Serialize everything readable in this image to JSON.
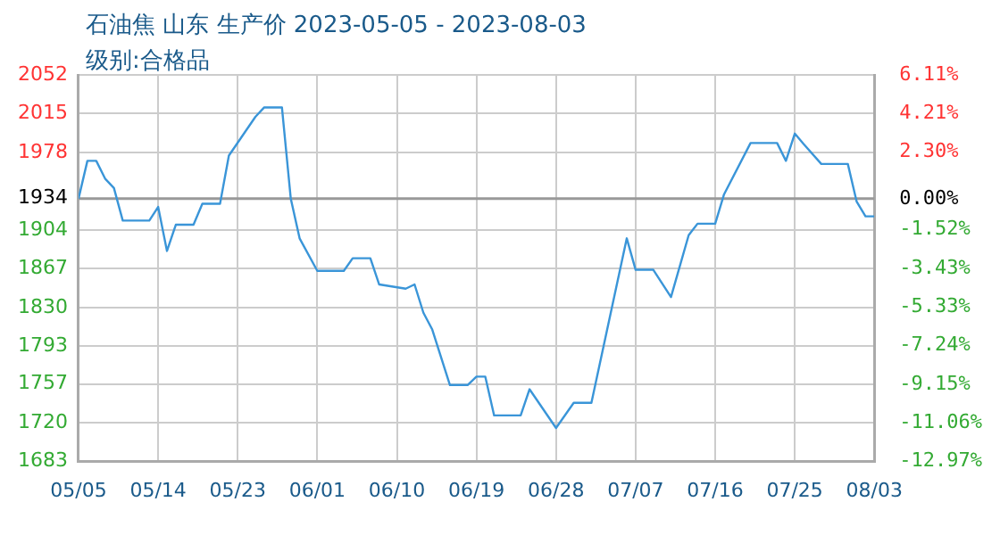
{
  "chart_data": {
    "type": "line",
    "title": "石油焦 山东 生产价 2023-05-05 - 2023-08-03",
    "subtitle": "级别:合格品",
    "x": [
      "2023-05-05",
      "2023-05-06",
      "2023-05-07",
      "2023-05-08",
      "2023-05-09",
      "2023-05-10",
      "2023-05-13",
      "2023-05-14",
      "2023-05-15",
      "2023-05-16",
      "2023-05-18",
      "2023-05-19",
      "2023-05-21",
      "2023-05-22",
      "2023-05-25",
      "2023-05-26",
      "2023-05-28",
      "2023-05-29",
      "2023-05-30",
      "2023-06-01",
      "2023-06-04",
      "2023-06-05",
      "2023-06-07",
      "2023-06-08",
      "2023-06-11",
      "2023-06-12",
      "2023-06-13",
      "2023-06-14",
      "2023-06-16",
      "2023-06-18",
      "2023-06-19",
      "2023-06-20",
      "2023-06-21",
      "2023-06-23",
      "2023-06-24",
      "2023-06-25",
      "2023-06-28",
      "2023-06-30",
      "2023-07-02",
      "2023-07-06",
      "2023-07-07",
      "2023-07-09",
      "2023-07-11",
      "2023-07-13",
      "2023-07-14",
      "2023-07-16",
      "2023-07-17",
      "2023-07-20",
      "2023-07-23",
      "2023-07-24",
      "2023-07-25",
      "2023-07-26",
      "2023-07-28",
      "2023-07-31",
      "2023-08-01",
      "2023-08-02",
      "2023-08-03"
    ],
    "series": [
      {
        "color": "#3a95d8",
        "values": [
          1934,
          1970,
          1970,
          1953,
          1944,
          1913,
          1913,
          1926,
          1884,
          1909,
          1909,
          1929,
          1929,
          1975,
          2012,
          2021,
          2021,
          1934,
          1896,
          1865,
          1865,
          1877,
          1877,
          1852,
          1848,
          1852,
          1825,
          1809,
          1756,
          1756,
          1764,
          1764,
          1727,
          1727,
          1727,
          1752,
          1715,
          1739,
          1739,
          1896,
          1866,
          1866,
          1840,
          1899,
          1910,
          1910,
          1938,
          1987,
          1987,
          1970,
          1996,
          1986,
          1967,
          1967,
          1931,
          1917,
          1917
        ]
      }
    ],
    "xlim": [
      "2023-05-05",
      "2023-08-03"
    ],
    "xticks": [
      {
        "value": "2023-05-05",
        "label": "05/05"
      },
      {
        "value": "2023-05-14",
        "label": "05/14"
      },
      {
        "value": "2023-05-23",
        "label": "05/23"
      },
      {
        "value": "2023-06-01",
        "label": "06/01"
      },
      {
        "value": "2023-06-10",
        "label": "06/10"
      },
      {
        "value": "2023-06-19",
        "label": "06/19"
      },
      {
        "value": "2023-06-28",
        "label": "06/28"
      },
      {
        "value": "2023-07-07",
        "label": "07/07"
      },
      {
        "value": "2023-07-16",
        "label": "07/16"
      },
      {
        "value": "2023-07-25",
        "label": "07/25"
      },
      {
        "value": "2023-08-03",
        "label": "08/03"
      }
    ],
    "ylim": [
      1683,
      2052
    ],
    "yticks": [
      1683,
      1720,
      1757,
      1793,
      1830,
      1867,
      1904,
      1934,
      1978,
      2015,
      2052
    ],
    "y2lim": [
      -12.97,
      6.11
    ],
    "y2ticks": [
      {
        "value": -12.97,
        "label": "-12.97%"
      },
      {
        "value": -11.06,
        "label": "-11.06%"
      },
      {
        "value": -9.15,
        "label": "-9.15%"
      },
      {
        "value": -7.24,
        "label": "-7.24%"
      },
      {
        "value": -5.33,
        "label": "-5.33%"
      },
      {
        "value": -3.43,
        "label": "-3.43%"
      },
      {
        "value": -1.52,
        "label": "-1.52%"
      },
      {
        "value": 0,
        "label": "0.00%"
      },
      {
        "value": 2.3,
        "label": "2.30%"
      },
      {
        "value": 4.21,
        "label": "4.21%"
      },
      {
        "value": 6.11,
        "label": "6.11%"
      }
    ],
    "ref_lines": [
      {
        "axis": "y",
        "value": 1934,
        "color": "#999999"
      }
    ],
    "grid": true,
    "legend": false,
    "marker": "none",
    "line_style": "solid"
  }
}
